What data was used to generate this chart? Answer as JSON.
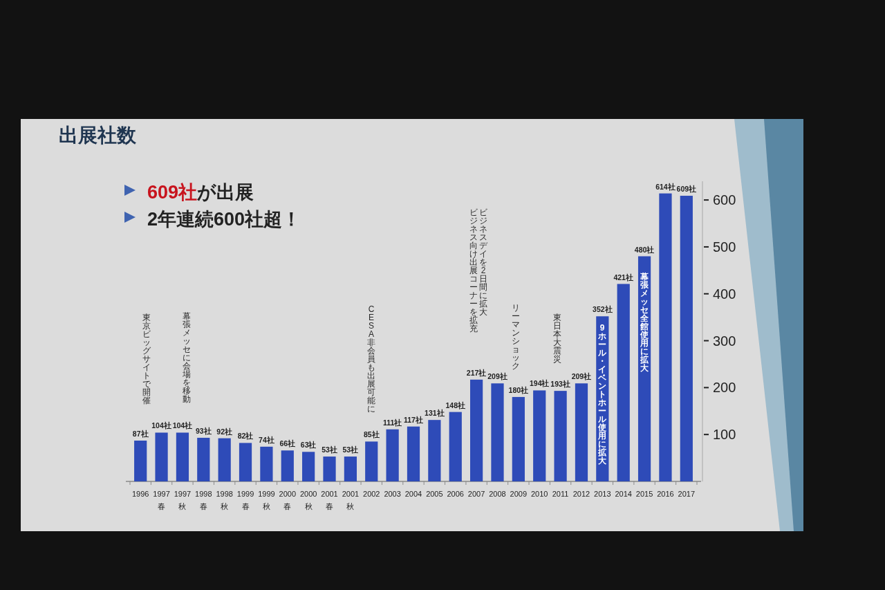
{
  "chart_data": {
    "type": "bar",
    "title": "出展社数",
    "categories": [
      "1996",
      "1997\n春",
      "1997\n秋",
      "1998\n春",
      "1998\n秋",
      "1999\n春",
      "1999\n秋",
      "2000\n春",
      "2000\n秋",
      "2001\n春",
      "2001\n秋",
      "2002",
      "2003",
      "2004",
      "2005",
      "2006",
      "2007",
      "2008",
      "2009",
      "2010",
      "2011",
      "2012",
      "2013",
      "2014",
      "2015",
      "2016",
      "2017"
    ],
    "values": [
      87,
      104,
      104,
      93,
      92,
      82,
      74,
      66,
      63,
      53,
      53,
      85,
      111,
      117,
      131,
      148,
      217,
      209,
      180,
      194,
      193,
      209,
      352,
      421,
      480,
      614,
      609
    ],
    "value_labels": [
      "87社",
      "104社",
      "104社",
      "93社",
      "92社",
      "82社",
      "74社",
      "66社",
      "63社",
      "53社",
      "53社",
      "85社",
      "111社",
      "117社",
      "131社",
      "148社",
      "217社",
      "209社",
      "180社",
      "194社",
      "193社",
      "209社",
      "352社",
      "421社",
      "480社",
      "614社",
      "609社"
    ],
    "color": "#2e4bb8",
    "ylim": [
      0,
      640
    ],
    "yticks": [
      100,
      200,
      300,
      400,
      500,
      600
    ],
    "annotations": [
      "**609社**が出展",
      "2年連続600社超！",
      "東京ビッグサイトで開催",
      "幕張メッセに会場を移動",
      "CESA非会員も出展可能に",
      "ビジネスデイを2日間に拡大",
      "ビジネス向け出展コーナーを拡充",
      "リーマンショック",
      "東日本大震災",
      "9ホール・イベントホール使用に拡大",
      "幕張メッセ全館使用に拡大"
    ]
  }
}
